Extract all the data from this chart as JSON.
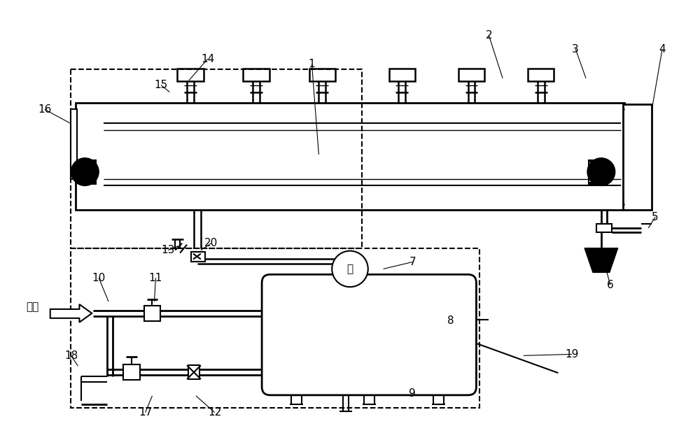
{
  "bg_color": "#ffffff",
  "lc": "#000000",
  "fig_width": 10.0,
  "fig_height": 6.39
}
